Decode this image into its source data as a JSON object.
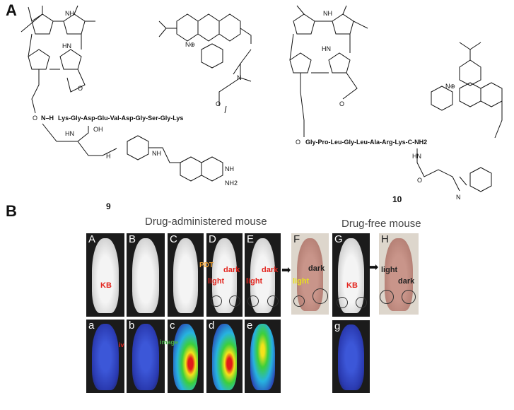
{
  "panel_a": {
    "label": "A",
    "compound9": {
      "number": "9",
      "peptide": "Lys-Gly-Asp-Glu-Val-Asp-Gly-Ser-Gly-Lys",
      "atoms": {
        "nh_linker": "N–H",
        "hn": "HN",
        "o": "O",
        "oh": "OH",
        "nh": "NH",
        "nh2": "NH2",
        "n_plus": "N⊕",
        "porphyrin_nh": "NH",
        "porphyrin_hn": "HN",
        "porphyrin_n": "N",
        "n_methyl": "N",
        "amide_nh": "H",
        "ketone_o": "O"
      }
    },
    "compound10": {
      "number": "10",
      "peptide": "Gly-Pro-Leu-Gly-Leu-Ala-Arg-Lys-C-NH2",
      "atoms": {
        "hn": "HN",
        "o": "O",
        "n_plus": "N⊕",
        "n": "N",
        "porphyrin_nh": "NH",
        "porphyrin_hn": "HN",
        "ketone_o": "O"
      }
    }
  },
  "panel_b": {
    "label": "B",
    "title_drug": "Drug-administered mouse",
    "title_free": "Drug-free mouse",
    "top_panels": [
      "A",
      "B",
      "C",
      "D",
      "E",
      "F",
      "G",
      "H"
    ],
    "bottom_panels": [
      "a",
      "b",
      "c",
      "d",
      "e",
      "g"
    ],
    "annotations": {
      "kb": "KB",
      "pdt": "PDT",
      "light": "light",
      "dark": "dark",
      "iv": "iv",
      "image": "image"
    },
    "colors": {
      "arrow_red": "#e3261f",
      "arrow_orange": "#f0a030",
      "arrow_green": "#4ab04a",
      "light_text": "#e8e020"
    }
  }
}
